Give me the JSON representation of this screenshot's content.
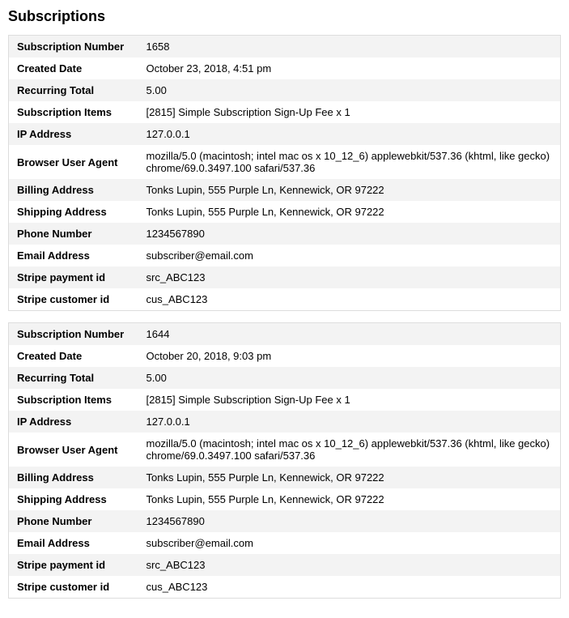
{
  "page_title": "Subscriptions",
  "colors": {
    "row_alt_bg": "#f3f3f3",
    "row_bg": "#ffffff",
    "border": "#dddddd"
  },
  "field_labels": {
    "subscription_number": "Subscription Number",
    "created_date": "Created Date",
    "recurring_total": "Recurring Total",
    "subscription_items": "Subscription Items",
    "ip_address": "IP Address",
    "browser_user_agent": "Browser User Agent",
    "billing_address": "Billing Address",
    "shipping_address": "Shipping Address",
    "phone_number": "Phone Number",
    "email_address": "Email Address",
    "stripe_payment_id": "Stripe payment id",
    "stripe_customer_id": "Stripe customer id"
  },
  "subscriptions": [
    {
      "subscription_number": "1658",
      "created_date": "October 23, 2018, 4:51 pm",
      "recurring_total": "5.00",
      "subscription_items": "[2815] Simple Subscription Sign-Up Fee x 1",
      "ip_address": "127.0.0.1",
      "browser_user_agent": "mozilla/5.0 (macintosh; intel mac os x 10_12_6) applewebkit/537.36 (khtml, like gecko) chrome/69.0.3497.100 safari/537.36",
      "billing_address": "Tonks Lupin, 555 Purple Ln, Kennewick, OR 97222",
      "shipping_address": "Tonks Lupin, 555 Purple Ln, Kennewick, OR 97222",
      "phone_number": "1234567890",
      "email_address": "subscriber@email.com",
      "stripe_payment_id": "src_ABC123",
      "stripe_customer_id": "cus_ABC123"
    },
    {
      "subscription_number": "1644",
      "created_date": "October 20, 2018, 9:03 pm",
      "recurring_total": "5.00",
      "subscription_items": "[2815] Simple Subscription Sign-Up Fee x 1",
      "ip_address": "127.0.0.1",
      "browser_user_agent": "mozilla/5.0 (macintosh; intel mac os x 10_12_6) applewebkit/537.36 (khtml, like gecko) chrome/69.0.3497.100 safari/537.36",
      "billing_address": "Tonks Lupin, 555 Purple Ln, Kennewick, OR 97222",
      "shipping_address": "Tonks Lupin, 555 Purple Ln, Kennewick, OR 97222",
      "phone_number": "1234567890",
      "email_address": "subscriber@email.com",
      "stripe_payment_id": "src_ABC123",
      "stripe_customer_id": "cus_ABC123"
    }
  ]
}
